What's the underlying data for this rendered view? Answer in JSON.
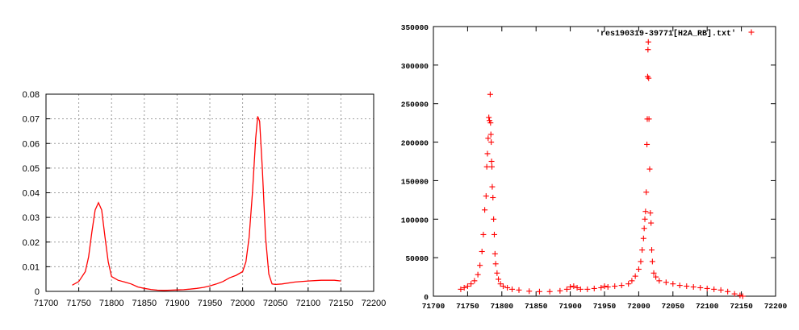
{
  "chart_data": [
    {
      "type": "line",
      "title": "",
      "xlabel": "",
      "ylabel": "",
      "xlim": [
        71700,
        72200
      ],
      "ylim": [
        0,
        0.08
      ],
      "grid": true,
      "x_ticks": [
        "71700",
        "71750",
        "71800",
        "71850",
        "71900",
        "71950",
        "72000",
        "72050",
        "72100",
        "72150",
        "72200"
      ],
      "y_ticks": [
        "0",
        "0.01",
        "0.02",
        "0.03",
        "0.04",
        "0.05",
        "0.06",
        "0.07",
        "0.08"
      ],
      "series_color": "#ff0000",
      "series": [
        {
          "x": [
            71740,
            71750,
            71760,
            71765,
            71770,
            71775,
            71780,
            71785,
            71790,
            71795,
            71800,
            71810,
            71820,
            71830,
            71840,
            71850,
            71860,
            71870,
            71880,
            71890,
            71900,
            71910,
            71920,
            71930,
            71940,
            71950,
            71960,
            71970,
            71980,
            71990,
            72000,
            72005,
            72010,
            72015,
            72020,
            72023,
            72026,
            72030,
            72035,
            72040,
            72045,
            72050,
            72060,
            72080,
            72100,
            72120,
            72140,
            72150
          ],
          "y": [
            0.0025,
            0.004,
            0.008,
            0.014,
            0.024,
            0.033,
            0.036,
            0.033,
            0.022,
            0.012,
            0.006,
            0.0045,
            0.0038,
            0.003,
            0.0018,
            0.0012,
            0.0008,
            0.0005,
            0.0004,
            0.0005,
            0.0006,
            0.0007,
            0.0009,
            0.0012,
            0.0016,
            0.0022,
            0.003,
            0.004,
            0.0055,
            0.0065,
            0.008,
            0.012,
            0.022,
            0.04,
            0.062,
            0.071,
            0.069,
            0.05,
            0.022,
            0.007,
            0.003,
            0.0028,
            0.003,
            0.0038,
            0.0042,
            0.0045,
            0.0045,
            0.0042
          ]
        }
      ]
    },
    {
      "type": "scatter",
      "title": "",
      "xlabel": "",
      "ylabel": "",
      "xlim": [
        71700,
        72200
      ],
      "ylim": [
        0,
        350000
      ],
      "grid": false,
      "legend_position": "top-right",
      "x_ticks": [
        "71700",
        "71750",
        "71800",
        "71850",
        "71900",
        "71950",
        "72000",
        "72050",
        "72100",
        "72150",
        "72200"
      ],
      "y_ticks": [
        "0",
        "50000",
        "100000",
        "150000",
        "200000",
        "250000",
        "300000",
        "350000"
      ],
      "series_color": "#ff0000",
      "series": [
        {
          "name": "'res190319-39771[H2A_RB].txt'",
          "x": [
            71740,
            71745,
            71750,
            71755,
            71760,
            71765,
            71768,
            71771,
            71773,
            71775,
            71777,
            71778,
            71779,
            71780,
            71781,
            71782,
            71783,
            71783.5,
            71784,
            71784.5,
            71785,
            71785.5,
            71786,
            71787,
            71788,
            71789,
            71790,
            71791,
            71793,
            71795,
            71798,
            71802,
            71808,
            71815,
            71825,
            71840,
            71855,
            71870,
            71885,
            71895,
            71900,
            71905,
            71910,
            71915,
            71925,
            71935,
            71945,
            71950,
            71955,
            71965,
            71975,
            71985,
            71990,
            71995,
            72000,
            72003,
            72005,
            72007,
            72008,
            72009,
            72010,
            72011,
            72012,
            72012.5,
            72013,
            72013.5,
            72014,
            72014.5,
            72015,
            72016,
            72017,
            72018,
            72019,
            72020,
            72022,
            72025,
            72030,
            72040,
            72050,
            72060,
            72070,
            72080,
            72090,
            72100,
            72110,
            72120,
            72130,
            72140,
            72148,
            72152
          ],
          "y": [
            9000,
            11000,
            13000,
            16000,
            20000,
            28000,
            40000,
            58000,
            80000,
            112000,
            130000,
            168000,
            185000,
            205000,
            232000,
            228000,
            262000,
            225000,
            210000,
            200000,
            175000,
            168000,
            142000,
            128000,
            100000,
            80000,
            55000,
            42000,
            30000,
            22000,
            16000,
            13000,
            11000,
            9000,
            8000,
            6500,
            6000,
            6000,
            7000,
            9000,
            12000,
            13000,
            11000,
            9000,
            9000,
            10000,
            11000,
            13000,
            12000,
            13000,
            14000,
            16000,
            20000,
            26000,
            35000,
            45000,
            60000,
            75000,
            88000,
            100000,
            110000,
            135000,
            197000,
            230000,
            285000,
            320000,
            330000,
            283000,
            230000,
            165000,
            108000,
            95000,
            60000,
            45000,
            30000,
            25000,
            20000,
            18000,
            16000,
            14000,
            13000,
            12000,
            11000,
            10000,
            9000,
            8000,
            6000,
            3000,
            1000,
            0
          ]
        }
      ]
    }
  ]
}
